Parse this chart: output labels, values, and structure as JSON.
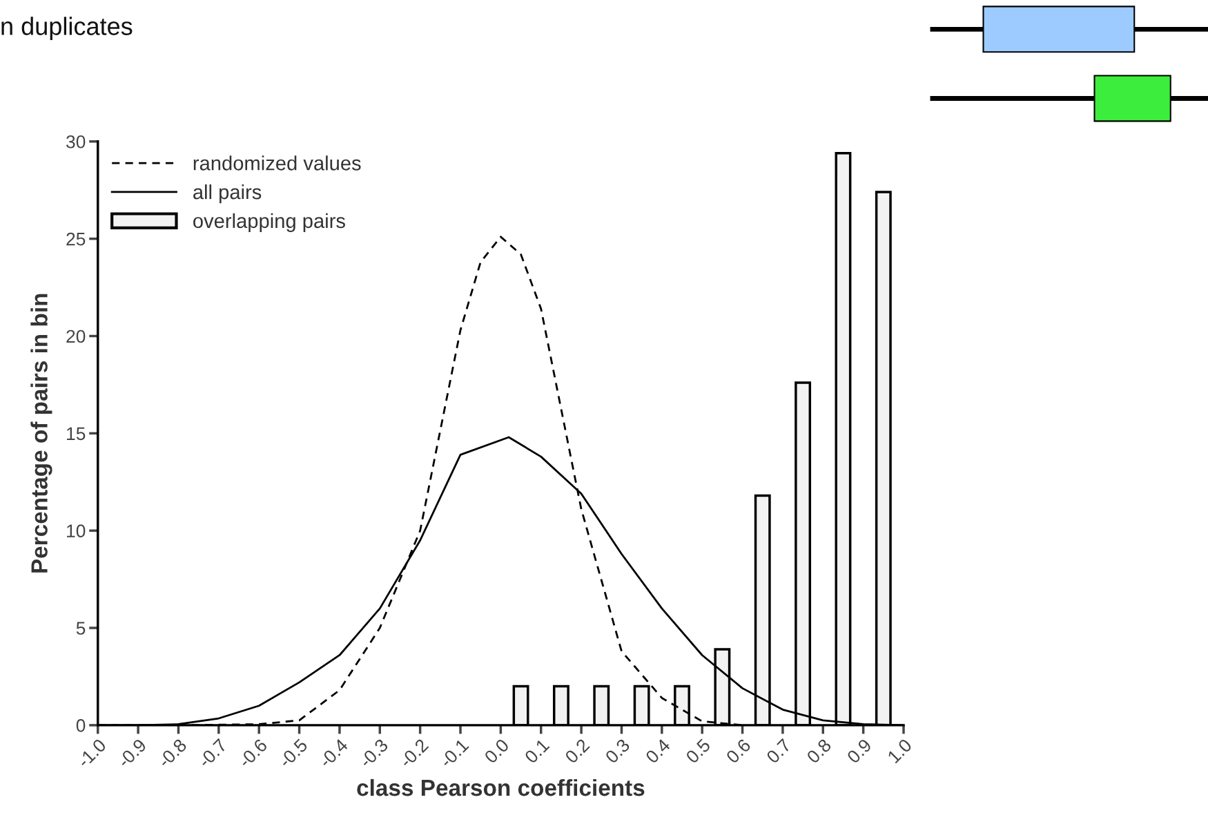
{
  "chart_data": {
    "type": "line",
    "xlabel": "class Pearson coefficients",
    "ylabel": "Percentage of pairs in bin",
    "annotations": [
      "n duplicates"
    ],
    "xlim": [
      -1.0,
      1.0
    ],
    "ylim": [
      0,
      30
    ],
    "xticks": [
      {
        "value": -1.0,
        "label": "-1.0"
      },
      {
        "value": -0.9,
        "label": "-0.9"
      },
      {
        "value": -0.8,
        "label": "-0.8"
      },
      {
        "value": -0.7,
        "label": "-0.7"
      },
      {
        "value": -0.6,
        "label": "-0.6"
      },
      {
        "value": -0.5,
        "label": "-0.5"
      },
      {
        "value": -0.4,
        "label": "-0.4"
      },
      {
        "value": -0.3,
        "label": "-0.3"
      },
      {
        "value": -0.2,
        "label": "-0.2"
      },
      {
        "value": -0.1,
        "label": "-0.1"
      },
      {
        "value": 0.0,
        "label": "0.0"
      },
      {
        "value": 0.1,
        "label": "0.1"
      },
      {
        "value": 0.2,
        "label": "0.2"
      },
      {
        "value": 0.3,
        "label": "0.3"
      },
      {
        "value": 0.4,
        "label": "0.4"
      },
      {
        "value": 0.5,
        "label": "0.5"
      },
      {
        "value": 0.6,
        "label": "0.6"
      },
      {
        "value": 0.7,
        "label": "0.7"
      },
      {
        "value": 0.8,
        "label": "0.8"
      },
      {
        "value": 0.9,
        "label": "0.9"
      },
      {
        "value": 1.0,
        "label": "1.0"
      }
    ],
    "yticks": [
      0,
      5,
      10,
      15,
      20,
      25,
      30
    ],
    "grid": false,
    "legend": "top left",
    "series": [
      {
        "name": "randomized values",
        "line_style": "dashed",
        "color": "#000000",
        "x": [
          -1.0,
          -0.8,
          -0.6,
          -0.5,
          -0.4,
          -0.3,
          -0.2,
          -0.1,
          -0.05,
          0.0,
          0.05,
          0.1,
          0.2,
          0.3,
          0.4,
          0.5,
          0.6
        ],
        "values": [
          0,
          0,
          0.05,
          0.25,
          1.8,
          5.0,
          10.0,
          20.3,
          23.8,
          25.1,
          24.2,
          21.4,
          11.1,
          3.8,
          1.4,
          0.2,
          0
        ]
      },
      {
        "name": "all pairs",
        "line_style": "solid",
        "color": "#000000",
        "x": [
          -1.0,
          -0.9,
          -0.8,
          -0.7,
          -0.6,
          -0.5,
          -0.4,
          -0.3,
          -0.2,
          -0.1,
          0.02,
          0.1,
          0.2,
          0.3,
          0.4,
          0.5,
          0.6,
          0.7,
          0.8,
          0.9,
          1.0
        ],
        "values": [
          0,
          0,
          0.05,
          0.35,
          1.0,
          2.2,
          3.6,
          6.0,
          9.5,
          13.9,
          14.8,
          13.8,
          11.9,
          8.8,
          6.0,
          3.6,
          1.9,
          0.8,
          0.25,
          0.05,
          0
        ]
      },
      {
        "name": "overlapping pairs",
        "type": "bar",
        "color": "#f2f2f2",
        "x": [
          0.05,
          0.15,
          0.25,
          0.35,
          0.45,
          0.55,
          0.65,
          0.75,
          0.85,
          0.95
        ],
        "values": [
          2,
          2,
          2,
          2,
          2,
          3.9,
          11.8,
          17.6,
          29.4,
          27.4
        ]
      }
    ]
  }
}
